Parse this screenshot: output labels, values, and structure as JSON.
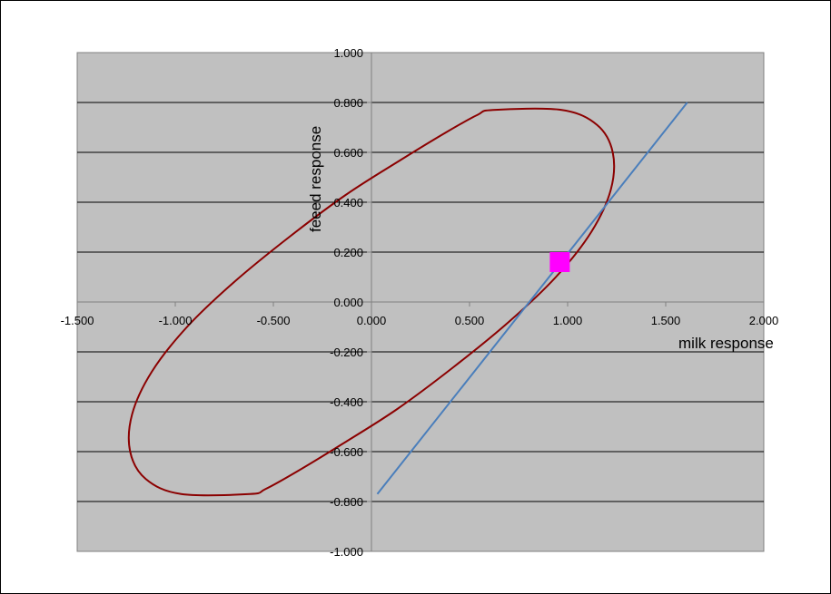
{
  "chart_data": {
    "type": "scatter",
    "title": "",
    "xlabel": "milk response",
    "ylabel": "feeed response",
    "xlim": [
      -1.5,
      2.0
    ],
    "ylim": [
      -1.0,
      1.0
    ],
    "x_ticks": [
      "-1.500",
      "-1.000",
      "-0.500",
      "0.000",
      "0.500",
      "1.000",
      "1.500",
      "2.000"
    ],
    "y_ticks": [
      "1.000",
      "0.800",
      "0.600",
      "0.400",
      "0.200",
      "0.000",
      "-0.200",
      "-0.400",
      "-0.600",
      "-0.800",
      "-1.000"
    ],
    "x_tick_values": [
      -1.5,
      -1.0,
      -0.5,
      0.0,
      0.5,
      1.0,
      1.5,
      2.0
    ],
    "y_tick_values": [
      1.0,
      0.8,
      0.6,
      0.4,
      0.2,
      0.0,
      -0.2,
      -0.4,
      -0.6,
      -0.8,
      -1.0
    ],
    "grid": true,
    "plot_background": "#c0c0c0",
    "series": [
      {
        "kind": "ellipse",
        "color": "#8b0000",
        "x": [
          -0.97,
          -1.15,
          -1.23,
          -1.22,
          -1.12,
          -0.94,
          -0.7,
          -0.42,
          -0.13,
          0.15,
          0.38,
          0.54,
          0.62,
          0.97,
          1.15,
          1.23,
          1.22,
          1.12,
          0.94,
          0.7,
          0.42,
          0.13,
          -0.15,
          -0.38,
          -0.54,
          -0.62,
          -0.97
        ],
        "y": [
          -0.77,
          -0.71,
          -0.6,
          -0.45,
          -0.28,
          -0.1,
          0.08,
          0.26,
          0.43,
          0.57,
          0.68,
          0.75,
          0.77,
          0.77,
          0.71,
          0.6,
          0.45,
          0.28,
          0.1,
          -0.08,
          -0.26,
          -0.43,
          -0.57,
          -0.68,
          -0.75,
          -0.77,
          -0.77
        ]
      },
      {
        "kind": "line",
        "color": "#4a7ebb",
        "x": [
          0.03,
          1.61
        ],
        "y": [
          -0.77,
          0.8
        ]
      },
      {
        "kind": "marker",
        "color": "#ff00ff",
        "x": [
          0.96
        ],
        "y": [
          0.16
        ]
      }
    ]
  }
}
